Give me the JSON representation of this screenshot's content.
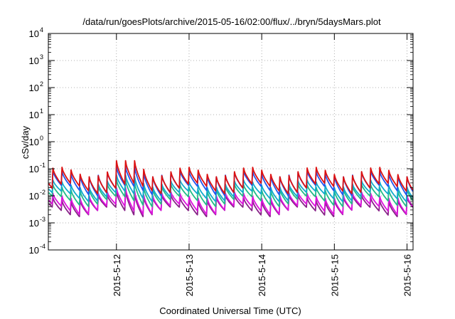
{
  "chart_data": {
    "type": "line",
    "title": "/data/run/goesPlots/archive/2015-05-16/02:00/flux/../bryn/5daysMars.plot",
    "xlabel": "Coordinated Universal Time (UTC)",
    "ylabel": "cSv/day",
    "yscale": "log",
    "ylim": [
      0.0001,
      10000
    ],
    "y_tick_exponents": [
      "4",
      "3",
      "2",
      "1",
      "0",
      "-1",
      "-2",
      "-3",
      "-4"
    ],
    "x_range_days": [
      "2015-05-11 01:30",
      "2015-05-16 02:00"
    ],
    "x_ticks": [
      "2015-5-12",
      "2015-5-13",
      "2015-5-14",
      "2015-5-15",
      "2015-5-16"
    ],
    "grid": true,
    "cycle_hours": 3,
    "series": [
      {
        "color": "#dd1111",
        "peak_range": [
          0.05,
          0.2
        ],
        "trough_range": [
          0.012,
          0.03
        ]
      },
      {
        "color": "#2255ee",
        "peak_range": [
          0.05,
          0.12
        ],
        "trough_range": [
          0.01,
          0.025
        ]
      },
      {
        "color": "#11aacc",
        "peak_range": [
          0.02,
          0.06
        ],
        "trough_range": [
          0.006,
          0.015
        ]
      },
      {
        "color": "#22bb88",
        "peak_range": [
          0.015,
          0.04
        ],
        "trough_range": [
          0.004,
          0.01
        ]
      },
      {
        "color": "#dd11dd",
        "peak_range": [
          0.008,
          0.02
        ],
        "trough_range": [
          0.002,
          0.005
        ]
      },
      {
        "color": "#882288",
        "peak_range": [
          0.006,
          0.016
        ],
        "trough_range": [
          0.0017,
          0.004
        ]
      }
    ]
  }
}
